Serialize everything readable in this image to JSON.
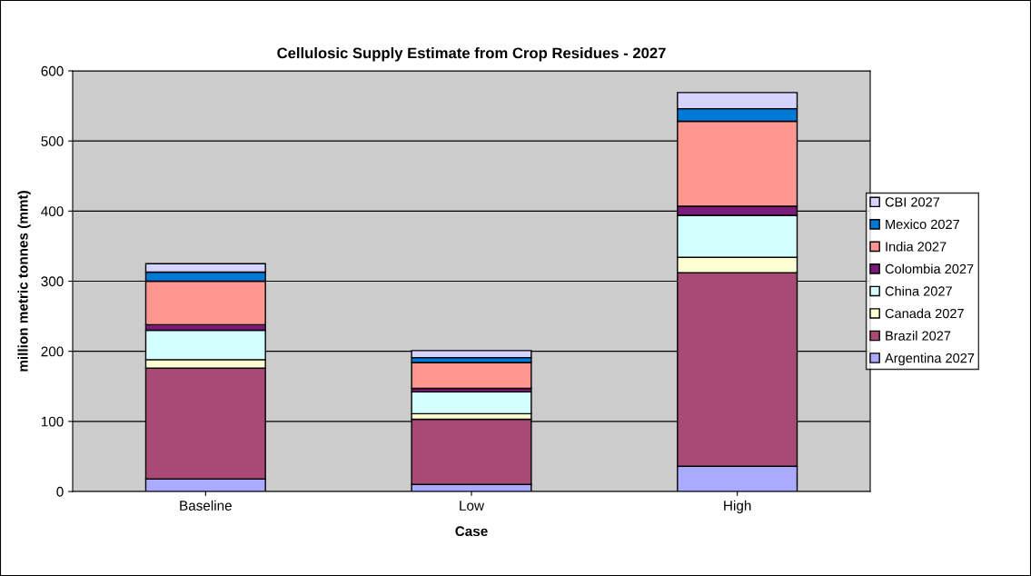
{
  "chart_data": {
    "type": "bar",
    "title": "Cellulosic Supply Estimate from Crop Residues - 2027",
    "xlabel": "Case",
    "ylabel": "million metric tonnes (mmt)",
    "categories": [
      "Baseline",
      "Low",
      "High"
    ],
    "stacked": true,
    "series": [
      {
        "name": "Argentina 2027",
        "color": "#aaaaff",
        "values": [
          18,
          10,
          36
        ]
      },
      {
        "name": "Brazil 2027",
        "color": "#a94a76",
        "values": [
          158,
          93,
          276
        ]
      },
      {
        "name": "Canada 2027",
        "color": "#ffffd4",
        "values": [
          12,
          8,
          22
        ]
      },
      {
        "name": "China 2027",
        "color": "#d4ffff",
        "values": [
          42,
          31,
          60
        ]
      },
      {
        "name": "Colombia 2027",
        "color": "#7a1a79",
        "values": [
          8,
          5,
          13
        ]
      },
      {
        "name": "India 2027",
        "color": "#ff9690",
        "values": [
          62,
          37,
          121
        ]
      },
      {
        "name": "Mexico 2027",
        "color": "#007ad6",
        "values": [
          13,
          7,
          18
        ]
      },
      {
        "name": "CBI 2027",
        "color": "#d4d4ff",
        "values": [
          12,
          10,
          23
        ]
      }
    ],
    "ylim": [
      0,
      600
    ],
    "yticks": [
      0,
      100,
      200,
      300,
      400,
      500,
      600
    ],
    "grid": "y",
    "legend": "right"
  }
}
